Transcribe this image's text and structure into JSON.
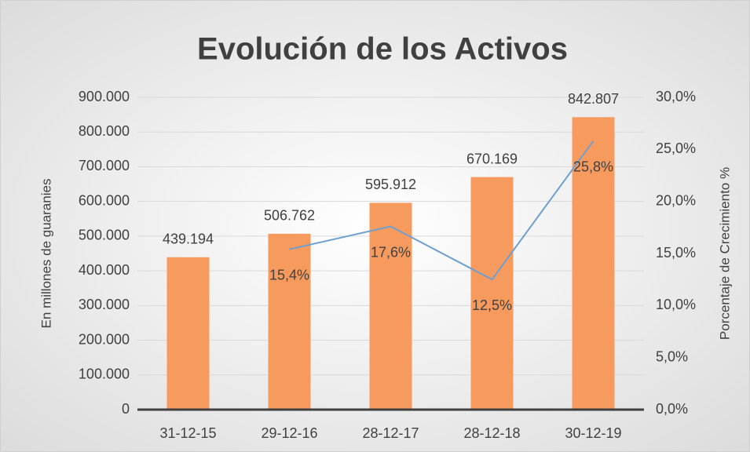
{
  "chart_data": {
    "type": "bar",
    "title": "Evolución de los Activos",
    "ylabel": "En millones de guaranies",
    "y2label": "Porcentaje de Crecimiento %",
    "categories": [
      "31-12-15",
      "29-12-16",
      "28-12-17",
      "28-12-18",
      "30-12-19"
    ],
    "series": [
      {
        "type": "bar",
        "color": "#f79a5e",
        "values": [
          439194,
          506762,
          595912,
          670169,
          842807
        ],
        "value_labels": [
          "439.194",
          "506.762",
          "595.912",
          "670.169",
          "842.807"
        ]
      },
      {
        "type": "line",
        "axis": "y2",
        "color": "#6d9fd2",
        "values": [
          null,
          15.4,
          17.6,
          12.5,
          25.8
        ],
        "value_labels": [
          null,
          "15,4%",
          "17,6%",
          "12,5%",
          "25,8%"
        ]
      }
    ],
    "ylim": [
      0,
      900000
    ],
    "yticks": [
      0,
      {
        "value": 100000,
        "label": "100.000"
      },
      {
        "value": 200000,
        "label": "200.000"
      },
      {
        "value": 300000,
        "label": "300.000"
      },
      {
        "value": 400000,
        "label": "400.000"
      },
      {
        "value": 500000,
        "label": "500.000"
      },
      {
        "value": 600000,
        "label": "600.000"
      },
      {
        "value": 700000,
        "label": "700.000"
      },
      {
        "value": 800000,
        "label": "800.000"
      },
      {
        "value": 900000,
        "label": "900.000"
      }
    ],
    "y2lim": [
      0,
      30
    ],
    "y2ticks": [
      {
        "value": 0,
        "label": "0,0%"
      },
      {
        "value": 5,
        "label": "5,0%"
      },
      {
        "value": 10,
        "label": "10,0%"
      },
      {
        "value": 15,
        "label": "15,0%"
      },
      {
        "value": 20,
        "label": "20,0%"
      },
      {
        "value": 25,
        "label": "25,0%"
      },
      {
        "value": 30,
        "label": "30,0%"
      }
    ],
    "grid": true
  }
}
